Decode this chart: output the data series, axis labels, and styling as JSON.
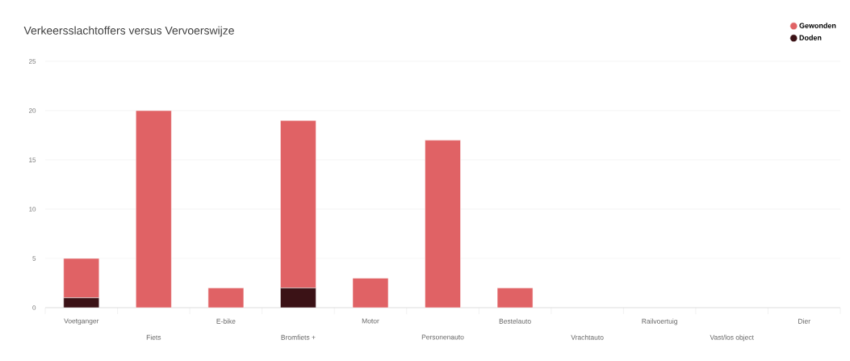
{
  "chart_data": {
    "type": "bar",
    "title": "Verkeersslachtoffers versus Vervoerswijze",
    "stacked": true,
    "categories": [
      "Voetganger",
      "Fiets",
      "E-bike",
      "Bromfiets +",
      "Motor",
      "Personenauto",
      "Bestelauto",
      "Vrachtauto",
      "Railvoertuig",
      "Vast/los object",
      "Dier"
    ],
    "series": [
      {
        "name": "Doden",
        "color": "#3b1216",
        "values": [
          1,
          0,
          0,
          2,
          0,
          0,
          0,
          0,
          0,
          0,
          0
        ]
      },
      {
        "name": "Gewonden",
        "color": "#e06265",
        "values": [
          4,
          20,
          2,
          17,
          3,
          17,
          2,
          0,
          0,
          0,
          0
        ]
      }
    ],
    "ylim": [
      0,
      25
    ],
    "yticks": [
      0,
      5,
      10,
      15,
      20,
      25
    ],
    "grid": "y",
    "legend": "top right"
  }
}
